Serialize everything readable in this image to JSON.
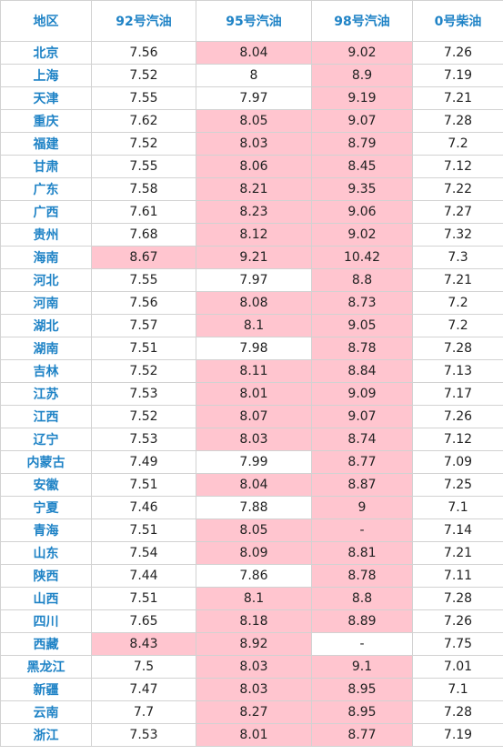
{
  "colors": {
    "header_text": "#1f83c6",
    "region_text": "#1f83c6",
    "highlight_bg": "#ffc5cf",
    "grid_line": "#d2d2d2"
  },
  "headers": [
    "地区",
    "92号汽油",
    "95号汽油",
    "98号汽油",
    "0号柴油"
  ],
  "rows": [
    {
      "region": "北京",
      "p92": "7.56",
      "p95": "8.04",
      "p98": "9.02",
      "p0": "7.26",
      "hl": [
        false,
        true,
        true,
        false
      ]
    },
    {
      "region": "上海",
      "p92": "7.52",
      "p95": "8",
      "p98": "8.9",
      "p0": "7.19",
      "hl": [
        false,
        false,
        true,
        false
      ]
    },
    {
      "region": "天津",
      "p92": "7.55",
      "p95": "7.97",
      "p98": "9.19",
      "p0": "7.21",
      "hl": [
        false,
        false,
        true,
        false
      ]
    },
    {
      "region": "重庆",
      "p92": "7.62",
      "p95": "8.05",
      "p98": "9.07",
      "p0": "7.28",
      "hl": [
        false,
        true,
        true,
        false
      ]
    },
    {
      "region": "福建",
      "p92": "7.52",
      "p95": "8.03",
      "p98": "8.79",
      "p0": "7.2",
      "hl": [
        false,
        true,
        true,
        false
      ]
    },
    {
      "region": "甘肃",
      "p92": "7.55",
      "p95": "8.06",
      "p98": "8.45",
      "p0": "7.12",
      "hl": [
        false,
        true,
        true,
        false
      ]
    },
    {
      "region": "广东",
      "p92": "7.58",
      "p95": "8.21",
      "p98": "9.35",
      "p0": "7.22",
      "hl": [
        false,
        true,
        true,
        false
      ]
    },
    {
      "region": "广西",
      "p92": "7.61",
      "p95": "8.23",
      "p98": "9.06",
      "p0": "7.27",
      "hl": [
        false,
        true,
        true,
        false
      ]
    },
    {
      "region": "贵州",
      "p92": "7.68",
      "p95": "8.12",
      "p98": "9.02",
      "p0": "7.32",
      "hl": [
        false,
        true,
        true,
        false
      ]
    },
    {
      "region": "海南",
      "p92": "8.67",
      "p95": "9.21",
      "p98": "10.42",
      "p0": "7.3",
      "hl": [
        true,
        true,
        true,
        false
      ]
    },
    {
      "region": "河北",
      "p92": "7.55",
      "p95": "7.97",
      "p98": "8.8",
      "p0": "7.21",
      "hl": [
        false,
        false,
        true,
        false
      ]
    },
    {
      "region": "河南",
      "p92": "7.56",
      "p95": "8.08",
      "p98": "8.73",
      "p0": "7.2",
      "hl": [
        false,
        true,
        true,
        false
      ]
    },
    {
      "region": "湖北",
      "p92": "7.57",
      "p95": "8.1",
      "p98": "9.05",
      "p0": "7.2",
      "hl": [
        false,
        true,
        true,
        false
      ]
    },
    {
      "region": "湖南",
      "p92": "7.51",
      "p95": "7.98",
      "p98": "8.78",
      "p0": "7.28",
      "hl": [
        false,
        false,
        true,
        false
      ]
    },
    {
      "region": "吉林",
      "p92": "7.52",
      "p95": "8.11",
      "p98": "8.84",
      "p0": "7.13",
      "hl": [
        false,
        true,
        true,
        false
      ]
    },
    {
      "region": "江苏",
      "p92": "7.53",
      "p95": "8.01",
      "p98": "9.09",
      "p0": "7.17",
      "hl": [
        false,
        true,
        true,
        false
      ]
    },
    {
      "region": "江西",
      "p92": "7.52",
      "p95": "8.07",
      "p98": "9.07",
      "p0": "7.26",
      "hl": [
        false,
        true,
        true,
        false
      ]
    },
    {
      "region": "辽宁",
      "p92": "7.53",
      "p95": "8.03",
      "p98": "8.74",
      "p0": "7.12",
      "hl": [
        false,
        true,
        true,
        false
      ]
    },
    {
      "region": "内蒙古",
      "p92": "7.49",
      "p95": "7.99",
      "p98": "8.77",
      "p0": "7.09",
      "hl": [
        false,
        false,
        true,
        false
      ]
    },
    {
      "region": "安徽",
      "p92": "7.51",
      "p95": "8.04",
      "p98": "8.87",
      "p0": "7.25",
      "hl": [
        false,
        true,
        true,
        false
      ]
    },
    {
      "region": "宁夏",
      "p92": "7.46",
      "p95": "7.88",
      "p98": "9",
      "p0": "7.1",
      "hl": [
        false,
        false,
        true,
        false
      ]
    },
    {
      "region": "青海",
      "p92": "7.51",
      "p95": "8.05",
      "p98": "-",
      "p0": "7.14",
      "hl": [
        false,
        true,
        true,
        false
      ]
    },
    {
      "region": "山东",
      "p92": "7.54",
      "p95": "8.09",
      "p98": "8.81",
      "p0": "7.21",
      "hl": [
        false,
        true,
        true,
        false
      ]
    },
    {
      "region": "陕西",
      "p92": "7.44",
      "p95": "7.86",
      "p98": "8.78",
      "p0": "7.11",
      "hl": [
        false,
        false,
        true,
        false
      ]
    },
    {
      "region": "山西",
      "p92": "7.51",
      "p95": "8.1",
      "p98": "8.8",
      "p0": "7.28",
      "hl": [
        false,
        true,
        true,
        false
      ]
    },
    {
      "region": "四川",
      "p92": "7.65",
      "p95": "8.18",
      "p98": "8.89",
      "p0": "7.26",
      "hl": [
        false,
        true,
        true,
        false
      ]
    },
    {
      "region": "西藏",
      "p92": "8.43",
      "p95": "8.92",
      "p98": "-",
      "p0": "7.75",
      "hl": [
        true,
        true,
        false,
        false
      ]
    },
    {
      "region": "黑龙江",
      "p92": "7.5",
      "p95": "8.03",
      "p98": "9.1",
      "p0": "7.01",
      "hl": [
        false,
        true,
        true,
        false
      ]
    },
    {
      "region": "新疆",
      "p92": "7.47",
      "p95": "8.03",
      "p98": "8.95",
      "p0": "7.1",
      "hl": [
        false,
        true,
        true,
        false
      ]
    },
    {
      "region": "云南",
      "p92": "7.7",
      "p95": "8.27",
      "p98": "8.95",
      "p0": "7.28",
      "hl": [
        false,
        true,
        true,
        false
      ]
    },
    {
      "region": "浙江",
      "p92": "7.53",
      "p95": "8.01",
      "p98": "8.77",
      "p0": "7.19",
      "hl": [
        false,
        true,
        true,
        false
      ]
    }
  ]
}
